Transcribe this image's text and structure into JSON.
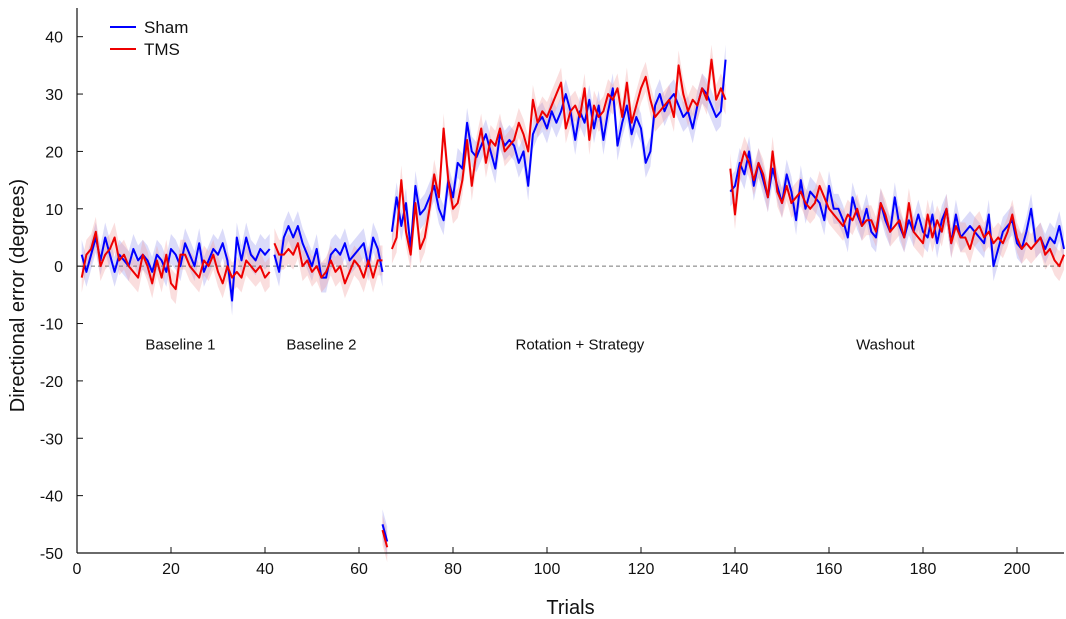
{
  "chart_data": {
    "type": "line",
    "title": "",
    "xlabel": "Trials",
    "ylabel": "Directional error (degrees)",
    "xlim": [
      0,
      210
    ],
    "ylim": [
      -50,
      45
    ],
    "xticks": [
      0,
      20,
      40,
      60,
      80,
      100,
      120,
      140,
      160,
      180,
      200
    ],
    "yticks": [
      -50,
      -40,
      -30,
      -20,
      -10,
      0,
      10,
      20,
      30,
      40
    ],
    "reference_line": 0,
    "legend_position": "top-left",
    "phases": [
      {
        "label": "Baseline 1",
        "x": 22
      },
      {
        "label": "Baseline 2",
        "x": 52
      },
      {
        "label": "Rotation + Strategy",
        "x": 107
      },
      {
        "label": "Washout",
        "x": 172
      }
    ],
    "series": [
      {
        "name": "Sham",
        "color": "#0000ff",
        "band_color": "#9999ee",
        "segments": [
          {
            "x": [
              1,
              2,
              3,
              4,
              5,
              6,
              7,
              8,
              9,
              10,
              11,
              12,
              13,
              14,
              15,
              16,
              17,
              18,
              19,
              20,
              21,
              22,
              23,
              24,
              25,
              26,
              27,
              28,
              29,
              30,
              31,
              32,
              33,
              34,
              35,
              36,
              37,
              38,
              39,
              40,
              41
            ],
            "y": [
              2,
              -1,
              2,
              5,
              1,
              5,
              2,
              -1,
              2,
              1,
              0,
              3,
              1,
              2,
              1,
              -1,
              2,
              1,
              -1,
              3,
              2,
              0,
              4,
              2,
              0,
              4,
              -1,
              1,
              3,
              2,
              4,
              1,
              -6,
              5,
              1,
              5,
              2,
              1,
              3,
              2,
              3
            ]
          },
          {
            "x": [
              42,
              43,
              44,
              45,
              46,
              47,
              48,
              49,
              50,
              51,
              52,
              53,
              54,
              55,
              56,
              57,
              58,
              59,
              60,
              61,
              62,
              63,
              64,
              65
            ],
            "y": [
              2,
              -1,
              5,
              7,
              5,
              7,
              4,
              2,
              0,
              3,
              -2,
              -2,
              2,
              3,
              2,
              4,
              1,
              2,
              3,
              4,
              0,
              5,
              3,
              -1
            ]
          },
          {
            "x": [
              65,
              66
            ],
            "y": [
              -45,
              -48
            ]
          },
          {
            "x": [
              67,
              68,
              69,
              70,
              71,
              72,
              73,
              74,
              75,
              76,
              77,
              78,
              79,
              80,
              81,
              82,
              83,
              84,
              85,
              86,
              87,
              88,
              89,
              90,
              91,
              92,
              93,
              94,
              95,
              96,
              97,
              98,
              99,
              100,
              101,
              102,
              103,
              104,
              105,
              106,
              107,
              108,
              109,
              110,
              111,
              112,
              113,
              114,
              115,
              116,
              117,
              118,
              119,
              120,
              121,
              122,
              123,
              124,
              125,
              126,
              127,
              128,
              129,
              130,
              131,
              132,
              133,
              134,
              135,
              136,
              137,
              138
            ],
            "y": [
              6,
              12,
              7,
              11,
              3,
              14,
              9,
              10,
              12,
              14,
              10,
              8,
              15,
              12,
              18,
              17,
              25,
              20,
              19,
              21,
              23,
              20,
              17,
              23,
              21,
              22,
              21,
              18,
              20,
              14,
              23,
              25,
              26,
              24,
              27,
              25,
              27,
              30,
              27,
              22,
              27,
              25,
              29,
              24,
              28,
              22,
              27,
              31,
              21,
              25,
              28,
              23,
              26,
              24,
              18,
              20,
              28,
              30,
              27,
              29,
              30,
              28,
              26,
              27,
              24,
              28,
              31,
              30,
              28,
              26,
              27,
              36
            ]
          },
          {
            "x": [
              139,
              140,
              141,
              142,
              143,
              144,
              145,
              146,
              147,
              148,
              149,
              150,
              151,
              152,
              153,
              154,
              155,
              156,
              157,
              158,
              159,
              160,
              161,
              162,
              163,
              164,
              165,
              166,
              167,
              168,
              169,
              170,
              171,
              172,
              173,
              174,
              175,
              176,
              177,
              178,
              179,
              180,
              181,
              182,
              183,
              184,
              185,
              186,
              187,
              188,
              189,
              190,
              191,
              192,
              193,
              194,
              195,
              196,
              197,
              198,
              199,
              200,
              201,
              202,
              203,
              204,
              205,
              206,
              207,
              208,
              209,
              210
            ],
            "y": [
              13,
              14,
              18,
              16,
              20,
              14,
              18,
              15,
              12,
              17,
              14,
              11,
              16,
              13,
              8,
              15,
              10,
              13,
              12,
              11,
              8,
              14,
              10,
              10,
              8,
              5,
              12,
              9,
              7,
              10,
              6,
              5,
              11,
              8,
              6,
              12,
              7,
              5,
              8,
              6,
              9,
              6,
              5,
              9,
              4,
              8,
              10,
              4,
              9,
              5,
              6,
              7,
              6,
              5,
              4,
              9,
              0,
              3,
              6,
              7,
              8,
              4,
              3,
              6,
              10,
              4,
              5,
              3,
              5,
              4,
              7,
              3
            ]
          }
        ]
      },
      {
        "name": "TMS",
        "color": "#ee0000",
        "band_color": "#f2a0a0",
        "segments": [
          {
            "x": [
              1,
              2,
              3,
              4,
              5,
              6,
              7,
              8,
              9,
              10,
              11,
              12,
              13,
              14,
              15,
              16,
              17,
              18,
              19,
              20,
              21,
              22,
              23,
              24,
              25,
              26,
              27,
              28,
              29,
              30,
              31,
              32,
              33,
              34,
              35,
              36,
              37,
              38,
              39,
              40,
              41
            ],
            "y": [
              -2,
              2,
              3,
              6,
              0,
              2,
              3,
              5,
              1,
              2,
              0,
              -1,
              -2,
              2,
              0,
              -3,
              1,
              -2,
              2,
              -3,
              -4,
              2,
              2,
              0,
              -1,
              -2,
              1,
              0,
              2,
              -1,
              -3,
              0,
              -2,
              -1,
              -2,
              1,
              0,
              -1,
              0,
              -2,
              -1
            ]
          },
          {
            "x": [
              42,
              43,
              44,
              45,
              46,
              47,
              48,
              49,
              50,
              51,
              52,
              53,
              54,
              55,
              56,
              57,
              58,
              59,
              60,
              61,
              62,
              63,
              64,
              65
            ],
            "y": [
              4,
              2,
              2,
              3,
              2,
              4,
              0,
              1,
              -1,
              0,
              -2,
              -1,
              1,
              -1,
              0,
              -3,
              -1,
              1,
              0,
              -2,
              1,
              -2,
              1,
              1
            ]
          },
          {
            "x": [
              65,
              66
            ],
            "y": [
              -46,
              -49
            ]
          },
          {
            "x": [
              67,
              68,
              69,
              70,
              71,
              72,
              73,
              74,
              75,
              76,
              77,
              78,
              79,
              80,
              81,
              82,
              83,
              84,
              85,
              86,
              87,
              88,
              89,
              90,
              91,
              92,
              93,
              94,
              95,
              96,
              97,
              98,
              99,
              100,
              101,
              102,
              103,
              104,
              105,
              106,
              107,
              108,
              109,
              110,
              111,
              112,
              113,
              114,
              115,
              116,
              117,
              118,
              119,
              120,
              121,
              122,
              123,
              124,
              125,
              126,
              127,
              128,
              129,
              130,
              131,
              132,
              133,
              134,
              135,
              136,
              137,
              138
            ],
            "y": [
              3,
              5,
              15,
              6,
              2,
              11,
              3,
              5,
              10,
              16,
              12,
              24,
              15,
              10,
              11,
              15,
              22,
              14,
              20,
              24,
              18,
              22,
              21,
              24,
              20,
              21,
              22,
              25,
              23,
              20,
              29,
              25,
              27,
              26,
              28,
              30,
              32,
              24,
              27,
              28,
              26,
              31,
              22,
              28,
              26,
              27,
              30,
              29,
              31,
              26,
              32,
              25,
              28,
              31,
              33,
              29,
              26,
              27,
              28,
              29,
              26,
              35,
              30,
              27,
              29,
              28,
              31,
              29,
              36,
              29,
              31,
              29
            ]
          },
          {
            "x": [
              139,
              140,
              141,
              142,
              143,
              144,
              145,
              146,
              147,
              148,
              149,
              150,
              151,
              152,
              153,
              154,
              155,
              156,
              157,
              158,
              159,
              160,
              161,
              162,
              163,
              164,
              165,
              166,
              167,
              168,
              169,
              170,
              171,
              172,
              173,
              174,
              175,
              176,
              177,
              178,
              179,
              180,
              181,
              182,
              183,
              184,
              185,
              186,
              187,
              188,
              189,
              190,
              191,
              192,
              193,
              194,
              195,
              196,
              197,
              198,
              199,
              200,
              201,
              202,
              203,
              204,
              205,
              206,
              207,
              208,
              209,
              210
            ],
            "y": [
              17,
              9,
              17,
              20,
              18,
              15,
              18,
              16,
              12,
              20,
              13,
              11,
              14,
              11,
              12,
              13,
              11,
              10,
              11,
              14,
              12,
              10,
              9,
              8,
              7,
              9,
              8,
              10,
              7,
              8,
              8,
              6,
              11,
              9,
              6,
              7,
              8,
              5,
              11,
              6,
              5,
              4,
              9,
              5,
              8,
              6,
              10,
              4,
              7,
              5,
              5,
              3,
              6,
              7,
              5,
              6,
              4,
              5,
              4,
              6,
              9,
              5,
              3,
              4,
              3,
              4,
              5,
              2,
              3,
              1,
              0,
              2
            ]
          }
        ]
      }
    ]
  }
}
